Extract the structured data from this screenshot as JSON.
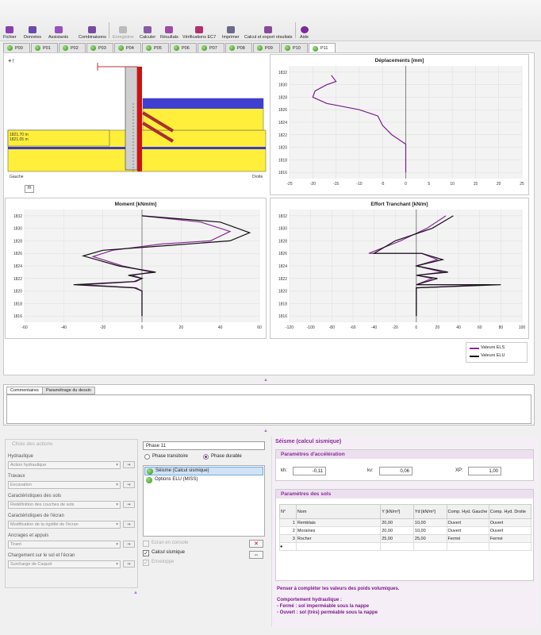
{
  "toolbar": {
    "fichier": "Fichier",
    "donnees": "Données",
    "assistants": "Assistants",
    "combinaisons": "Combinaisons",
    "enregistrer": "Enregistrer",
    "calculer": "Calculer",
    "resultats": "Résultats",
    "verifications": "Vérifications EC7",
    "imprimer": "Imprimer",
    "export": "Calcul et export résultats",
    "aide": "Aide"
  },
  "tabs": [
    "P00",
    "P01",
    "P02",
    "P03",
    "P04",
    "P05",
    "P06",
    "P07",
    "P08",
    "P09",
    "P10",
    "P11"
  ],
  "active_tab": "P11",
  "drawing": {
    "origin_label": "+↑",
    "left_label": "Gauche",
    "right_label": "Droite",
    "unit_button": "m",
    "level1": "1821.70 m",
    "level2": "1821.05 m"
  },
  "chart_data": [
    {
      "type": "line",
      "title": "Déplacements [mm]",
      "xlim": [
        -25,
        25
      ],
      "ylim": [
        1815,
        1833
      ],
      "xticks": [
        "-25",
        "-20",
        "-15",
        "-10",
        "-5",
        "0",
        "5",
        "10",
        "15",
        "20",
        "25"
      ],
      "yticks": [
        "1816",
        "1818",
        "1820",
        "1822",
        "1824",
        "1826",
        "1828",
        "1830",
        "1832"
      ],
      "series": [
        {
          "color": "#7b1e8c",
          "x": [
            -16,
            -15,
            -17,
            -19.5,
            -20,
            -17,
            -10,
            -6,
            -5,
            -3,
            0,
            0
          ],
          "y": [
            1831.5,
            1830.5,
            1830,
            1829,
            1828,
            1827,
            1826,
            1825,
            1823.5,
            1822,
            1820.5,
            1816
          ]
        }
      ]
    },
    {
      "type": "line",
      "title": "Moment [kNm/m]",
      "xlim": [
        -60,
        60
      ],
      "ylim": [
        1815,
        1833
      ],
      "xticks": [
        "-60",
        "-40",
        "-20",
        "0",
        "20",
        "40",
        "60"
      ],
      "yticks": [
        "1816",
        "1818",
        "1820",
        "1822",
        "1824",
        "1826",
        "1828",
        "1830",
        "1832"
      ],
      "series": [
        {
          "name": "Valeurs ELS",
          "color": "#8a2a9a",
          "x": [
            0,
            30,
            45,
            35,
            10,
            -15,
            -25,
            -10,
            5,
            -5,
            0,
            -3,
            -30,
            -3,
            0,
            0
          ],
          "y": [
            1832,
            1831,
            1829.5,
            1828,
            1827.5,
            1826.5,
            1825.5,
            1824,
            1823,
            1822.5,
            1822,
            1821.5,
            1821,
            1820.5,
            1820,
            1816
          ]
        },
        {
          "name": "Valeurs ELU",
          "color": "#111111",
          "x": [
            0,
            40,
            55,
            45,
            15,
            -20,
            -30,
            -12,
            7,
            -7,
            0,
            -4,
            -35,
            -4,
            0,
            0
          ],
          "y": [
            1832,
            1831,
            1829.3,
            1828,
            1827.3,
            1826.5,
            1825.6,
            1824,
            1823,
            1822.5,
            1822,
            1821.5,
            1821,
            1820.5,
            1820,
            1816
          ]
        }
      ]
    },
    {
      "type": "line",
      "title": "Effort Tranchant [kN/m]",
      "xlim": [
        -120,
        100
      ],
      "ylim": [
        1815,
        1833
      ],
      "xticks": [
        "-120",
        "-100",
        "-80",
        "-60",
        "-40",
        "-20",
        "0",
        "20",
        "40",
        "60",
        "80",
        "100"
      ],
      "yticks": [
        "1816",
        "1818",
        "1820",
        "1822",
        "1824",
        "1826",
        "1828",
        "1830",
        "1832"
      ],
      "series": [
        {
          "name": "Valeurs ELS",
          "color": "#8a2a9a",
          "x": [
            28,
            10,
            -15,
            -45,
            5,
            20,
            0,
            25,
            0,
            15,
            0,
            70,
            0,
            0
          ],
          "y": [
            1832,
            1830,
            1828,
            1826,
            1826,
            1825,
            1824,
            1823,
            1822.5,
            1822,
            1821,
            1821,
            1820.5,
            1816
          ]
        },
        {
          "name": "Valeurs ELU",
          "color": "#111111",
          "x": [
            35,
            15,
            -20,
            -40,
            5,
            25,
            0,
            30,
            0,
            20,
            0,
            80,
            0,
            0
          ],
          "y": [
            1832,
            1830,
            1828,
            1826,
            1826,
            1825,
            1824,
            1823,
            1822.5,
            1822,
            1821,
            1821,
            1820.5,
            1816
          ]
        }
      ]
    }
  ],
  "legend": {
    "els": "Valeurs ELS",
    "elu": "Valeurs ELU"
  },
  "bottom_tabs": {
    "commentaires": "Commentaires",
    "parametrage": "Paramétrage du dessin"
  },
  "actions": {
    "title": "Choix des actions",
    "groups": [
      {
        "label": "Hydraulique",
        "value": "Action hydraulique"
      },
      {
        "label": "Travaux",
        "value": "Excavation"
      },
      {
        "label": "Caractéristiques des sols",
        "value": "Redéfinition des couches de sols"
      },
      {
        "label": "Caractéristiques de l'écran",
        "value": "Modification de la rigidité de l'écran"
      },
      {
        "label": "Ancrages et appuis",
        "value": "Tirant"
      },
      {
        "label": "Chargement sur le sol et l'écran",
        "value": "Surcharge de Caquot"
      }
    ],
    "btn": "⇒"
  },
  "phase": {
    "name": "Phase 11",
    "transitoire": "Phase transitoire",
    "durable": "Phase durable",
    "list": [
      "Séisme (Calcul sismique)",
      "Options ELU (MISS)"
    ],
    "ecran_console": "Ecran en console",
    "calcul_sismique": "Calcul sismique",
    "enveloppe": "Enveloppe"
  },
  "seisme": {
    "title": "Séisme (calcul sismique)",
    "accel_title": "Paramètres d'accélération",
    "kh_label": "kh:",
    "kh": "-0,11",
    "kv_label": "kv:",
    "kv": "0,06",
    "xp_label": "XP:",
    "xp": "1,00",
    "sols_title": "Paramètres des sols",
    "headers": [
      "N°",
      "Nom",
      "Y [kN/m³]",
      "Yd [kN/m³]",
      "Comp. Hyd. Gauche",
      "Comp. Hyd. Droite"
    ],
    "rows": [
      [
        "1",
        "Remblais",
        "20,00",
        "10,00",
        "Ouvert",
        "Ouvert"
      ],
      [
        "2",
        "Moraines",
        "20,00",
        "10,00",
        "Ouvert",
        "Ouvert"
      ],
      [
        "3",
        "Rocher",
        "25,00",
        "25,00",
        "Fermé",
        "Fermé"
      ]
    ],
    "note1": "Penser à compléter les valeurs des poids volumiques.",
    "note2": "Comportement hydraulique :",
    "note3": "- Fermé : sol imperméable sous la nappe",
    "note4": "- Ouvert : sol (très) perméable sous la nappe"
  }
}
